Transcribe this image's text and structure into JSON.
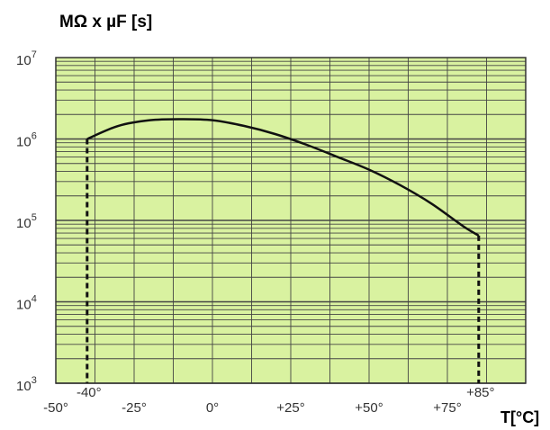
{
  "chart_data": {
    "type": "line",
    "ylabel": "MΩ x µF [s]",
    "xlabel": "T[°C]",
    "y_scale": "log",
    "x_range": [
      -50,
      100
    ],
    "y_range": [
      1000,
      10000000
    ],
    "grid": true,
    "x_tick_labels": [
      {
        "x": -50,
        "label": "-50°"
      },
      {
        "x": -25,
        "label": "-25°"
      },
      {
        "x": 0,
        "label": "0°"
      },
      {
        "x": 25,
        "label": "+25°"
      },
      {
        "x": 50,
        "label": "+50°"
      },
      {
        "x": 75,
        "label": "+75°"
      }
    ],
    "extra_x_labels": [
      {
        "x": -40,
        "label": "-40°"
      },
      {
        "x": 85,
        "label": "+85°"
      }
    ],
    "y_tick_labels": [
      {
        "y": 1000,
        "base": "10",
        "exp": "3"
      },
      {
        "y": 10000,
        "base": "10",
        "exp": "4"
      },
      {
        "y": 100000,
        "base": "10",
        "exp": "5"
      },
      {
        "y": 1000000,
        "base": "10",
        "exp": "6"
      },
      {
        "y": 10000000,
        "base": "10",
        "exp": "7"
      }
    ],
    "series": [
      {
        "points": [
          {
            "x": -40,
            "y": 1000000
          },
          {
            "x": -30,
            "y": 1450000
          },
          {
            "x": -20,
            "y": 1700000
          },
          {
            "x": -10,
            "y": 1750000
          },
          {
            "x": 0,
            "y": 1700000
          },
          {
            "x": 10,
            "y": 1450000
          },
          {
            "x": 20,
            "y": 1150000
          },
          {
            "x": 30,
            "y": 850000
          },
          {
            "x": 40,
            "y": 600000
          },
          {
            "x": 50,
            "y": 420000
          },
          {
            "x": 60,
            "y": 270000
          },
          {
            "x": 70,
            "y": 160000
          },
          {
            "x": 80,
            "y": 85000
          },
          {
            "x": 85,
            "y": 65000
          }
        ]
      }
    ],
    "drop_lines": [
      {
        "x": -40,
        "y_from": 1000,
        "y_to": 1000000
      },
      {
        "x": 85,
        "y_from": 1000,
        "y_to": 65000
      }
    ],
    "colors": {
      "plot_background": "#d9f2a0",
      "grid": "#444444",
      "curve": "#111111"
    }
  }
}
